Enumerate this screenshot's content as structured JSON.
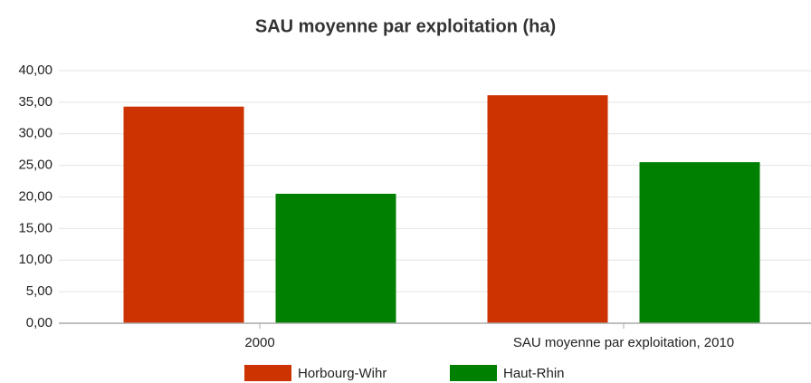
{
  "chart_data": {
    "type": "bar",
    "title": "SAU moyenne par exploitation (ha)",
    "categories": [
      "2000",
      "SAU moyenne par exploitation, 2010"
    ],
    "series": [
      {
        "name": "Horbourg-Wihr",
        "color": "#cc3300",
        "values": [
          34.3,
          36.1
        ]
      },
      {
        "name": "Haut-Rhin",
        "color": "#008000",
        "values": [
          20.5,
          25.5
        ]
      }
    ],
    "ylim": [
      0,
      40
    ],
    "yticks": [
      {
        "value": 0,
        "label": "0,00"
      },
      {
        "value": 5,
        "label": "5,00"
      },
      {
        "value": 10,
        "label": "10,00"
      },
      {
        "value": 15,
        "label": "15,00"
      },
      {
        "value": 20,
        "label": "20,00"
      },
      {
        "value": 25,
        "label": "25,00"
      },
      {
        "value": 30,
        "label": "30,00"
      },
      {
        "value": 35,
        "label": "35,00"
      },
      {
        "value": 40,
        "label": "40,00"
      }
    ],
    "grid": true
  }
}
